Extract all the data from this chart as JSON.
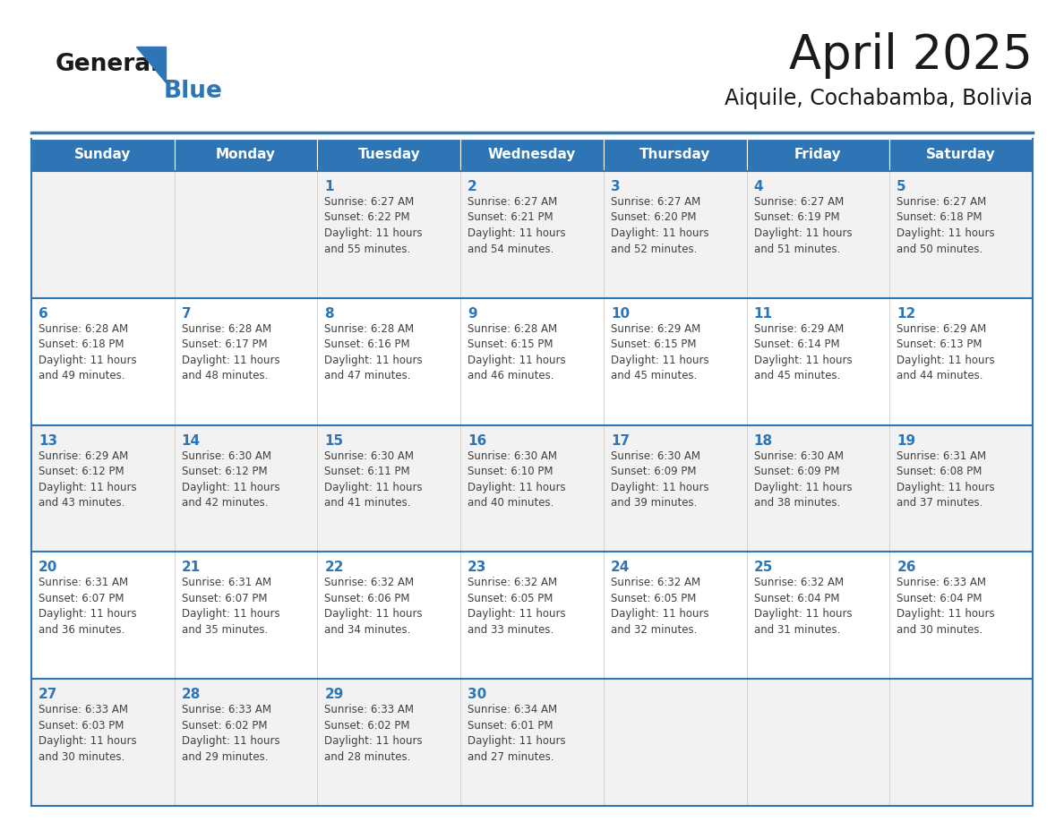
{
  "title": "April 2025",
  "subtitle": "Aiquile, Cochabamba, Bolivia",
  "days_of_week": [
    "Sunday",
    "Monday",
    "Tuesday",
    "Wednesday",
    "Thursday",
    "Friday",
    "Saturday"
  ],
  "header_bg": "#2E75B6",
  "header_text_color": "#FFFFFF",
  "cell_bg_light": "#F2F2F2",
  "cell_bg_white": "#FFFFFF",
  "row_border_color": "#2E75B6",
  "day_number_color": "#2E75B6",
  "text_color": "#404040",
  "logo_general_color": "#1a1a1a",
  "logo_blue_color": "#2E75B6",
  "calendar": [
    [
      {
        "day": null,
        "info": ""
      },
      {
        "day": null,
        "info": ""
      },
      {
        "day": 1,
        "info": "Sunrise: 6:27 AM\nSunset: 6:22 PM\nDaylight: 11 hours\nand 55 minutes."
      },
      {
        "day": 2,
        "info": "Sunrise: 6:27 AM\nSunset: 6:21 PM\nDaylight: 11 hours\nand 54 minutes."
      },
      {
        "day": 3,
        "info": "Sunrise: 6:27 AM\nSunset: 6:20 PM\nDaylight: 11 hours\nand 52 minutes."
      },
      {
        "day": 4,
        "info": "Sunrise: 6:27 AM\nSunset: 6:19 PM\nDaylight: 11 hours\nand 51 minutes."
      },
      {
        "day": 5,
        "info": "Sunrise: 6:27 AM\nSunset: 6:18 PM\nDaylight: 11 hours\nand 50 minutes."
      }
    ],
    [
      {
        "day": 6,
        "info": "Sunrise: 6:28 AM\nSunset: 6:18 PM\nDaylight: 11 hours\nand 49 minutes."
      },
      {
        "day": 7,
        "info": "Sunrise: 6:28 AM\nSunset: 6:17 PM\nDaylight: 11 hours\nand 48 minutes."
      },
      {
        "day": 8,
        "info": "Sunrise: 6:28 AM\nSunset: 6:16 PM\nDaylight: 11 hours\nand 47 minutes."
      },
      {
        "day": 9,
        "info": "Sunrise: 6:28 AM\nSunset: 6:15 PM\nDaylight: 11 hours\nand 46 minutes."
      },
      {
        "day": 10,
        "info": "Sunrise: 6:29 AM\nSunset: 6:15 PM\nDaylight: 11 hours\nand 45 minutes."
      },
      {
        "day": 11,
        "info": "Sunrise: 6:29 AM\nSunset: 6:14 PM\nDaylight: 11 hours\nand 45 minutes."
      },
      {
        "day": 12,
        "info": "Sunrise: 6:29 AM\nSunset: 6:13 PM\nDaylight: 11 hours\nand 44 minutes."
      }
    ],
    [
      {
        "day": 13,
        "info": "Sunrise: 6:29 AM\nSunset: 6:12 PM\nDaylight: 11 hours\nand 43 minutes."
      },
      {
        "day": 14,
        "info": "Sunrise: 6:30 AM\nSunset: 6:12 PM\nDaylight: 11 hours\nand 42 minutes."
      },
      {
        "day": 15,
        "info": "Sunrise: 6:30 AM\nSunset: 6:11 PM\nDaylight: 11 hours\nand 41 minutes."
      },
      {
        "day": 16,
        "info": "Sunrise: 6:30 AM\nSunset: 6:10 PM\nDaylight: 11 hours\nand 40 minutes."
      },
      {
        "day": 17,
        "info": "Sunrise: 6:30 AM\nSunset: 6:09 PM\nDaylight: 11 hours\nand 39 minutes."
      },
      {
        "day": 18,
        "info": "Sunrise: 6:30 AM\nSunset: 6:09 PM\nDaylight: 11 hours\nand 38 minutes."
      },
      {
        "day": 19,
        "info": "Sunrise: 6:31 AM\nSunset: 6:08 PM\nDaylight: 11 hours\nand 37 minutes."
      }
    ],
    [
      {
        "day": 20,
        "info": "Sunrise: 6:31 AM\nSunset: 6:07 PM\nDaylight: 11 hours\nand 36 minutes."
      },
      {
        "day": 21,
        "info": "Sunrise: 6:31 AM\nSunset: 6:07 PM\nDaylight: 11 hours\nand 35 minutes."
      },
      {
        "day": 22,
        "info": "Sunrise: 6:32 AM\nSunset: 6:06 PM\nDaylight: 11 hours\nand 34 minutes."
      },
      {
        "day": 23,
        "info": "Sunrise: 6:32 AM\nSunset: 6:05 PM\nDaylight: 11 hours\nand 33 minutes."
      },
      {
        "day": 24,
        "info": "Sunrise: 6:32 AM\nSunset: 6:05 PM\nDaylight: 11 hours\nand 32 minutes."
      },
      {
        "day": 25,
        "info": "Sunrise: 6:32 AM\nSunset: 6:04 PM\nDaylight: 11 hours\nand 31 minutes."
      },
      {
        "day": 26,
        "info": "Sunrise: 6:33 AM\nSunset: 6:04 PM\nDaylight: 11 hours\nand 30 minutes."
      }
    ],
    [
      {
        "day": 27,
        "info": "Sunrise: 6:33 AM\nSunset: 6:03 PM\nDaylight: 11 hours\nand 30 minutes."
      },
      {
        "day": 28,
        "info": "Sunrise: 6:33 AM\nSunset: 6:02 PM\nDaylight: 11 hours\nand 29 minutes."
      },
      {
        "day": 29,
        "info": "Sunrise: 6:33 AM\nSunset: 6:02 PM\nDaylight: 11 hours\nand 28 minutes."
      },
      {
        "day": 30,
        "info": "Sunrise: 6:34 AM\nSunset: 6:01 PM\nDaylight: 11 hours\nand 27 minutes."
      },
      {
        "day": null,
        "info": ""
      },
      {
        "day": null,
        "info": ""
      },
      {
        "day": null,
        "info": ""
      }
    ]
  ]
}
